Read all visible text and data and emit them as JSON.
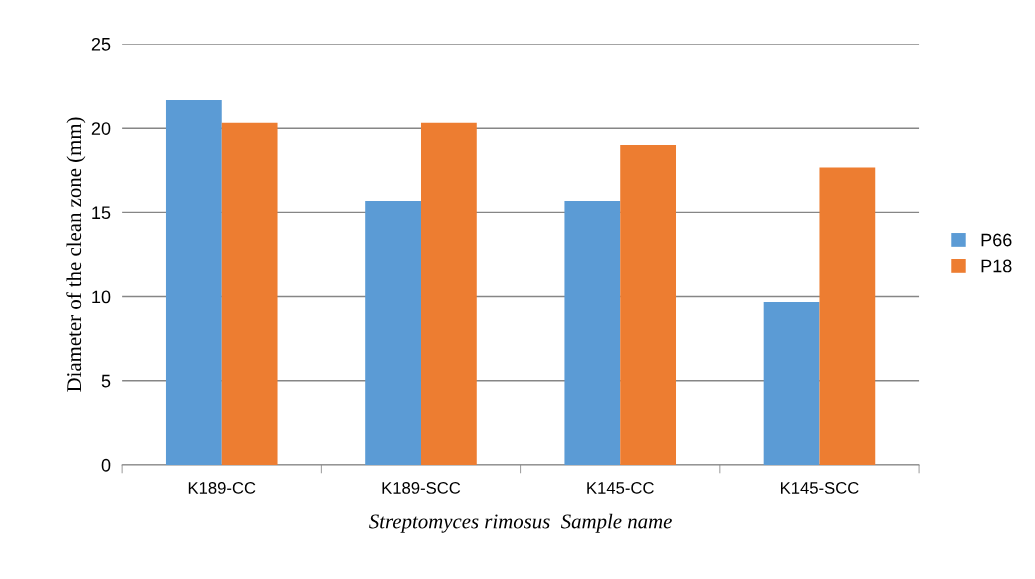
{
  "chart_data": {
    "type": "bar",
    "categories": [
      "K189-CC",
      "K189-SCC",
      "K145-CC",
      "K145-SCC"
    ],
    "series": [
      {
        "name": "P66",
        "color": "#5b9bd5",
        "values": [
          21.67,
          15.67,
          15.67,
          9.67
        ]
      },
      {
        "name": "P18",
        "color": "#ed7d31",
        "values": [
          20.33,
          20.33,
          19,
          17.67
        ]
      }
    ],
    "xlabel": "Streptomyces rimosus  Sample name",
    "ylabel": "Diameter of the clean zone (mm)",
    "ylim": [
      0,
      25
    ],
    "yticks": [
      0,
      5,
      10,
      15,
      20,
      25
    ],
    "grid": "y",
    "legend": "right"
  }
}
